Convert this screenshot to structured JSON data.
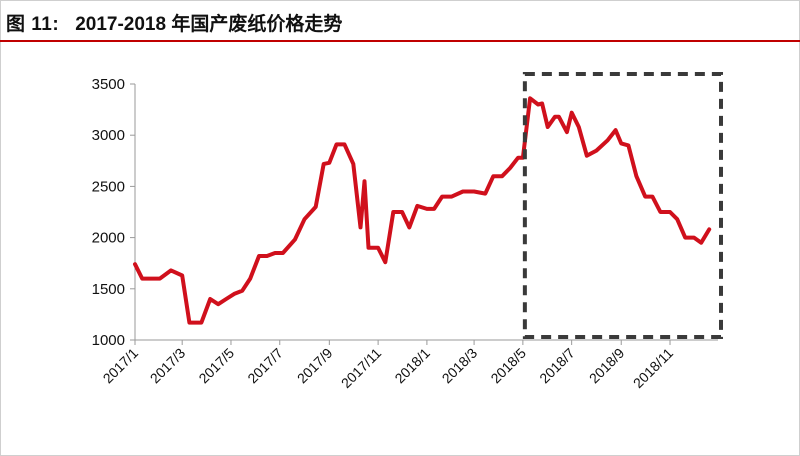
{
  "header": {
    "figure_label": "图 11:",
    "title": "2017-2018 年国产废纸价格走势"
  },
  "colors": {
    "series": "#d0101c",
    "title_rule": "#c00000",
    "highlight_box": "#3a3a3a"
  },
  "chart_data": {
    "type": "line",
    "title": "2017-2018 年国产废纸价格走势",
    "xlabel": "",
    "ylabel": "",
    "ylim": [
      1000,
      3500
    ],
    "yticks": [
      "1000",
      "1500",
      "2000",
      "2500",
      "3000",
      "3500"
    ],
    "xticks": [
      "2017/1",
      "2017/3",
      "2017/5",
      "2017/7",
      "2017/9",
      "2017/11",
      "2018/1",
      "2018/3",
      "2018/5",
      "2018/7",
      "2018/9",
      "2018/11"
    ],
    "grid": false,
    "legend": "none",
    "highlight": {
      "from": "2018/5",
      "to": "2018/12",
      "style": "dashed box"
    },
    "series": [
      {
        "x": [
          "2017/1/01",
          "2017/1/10",
          "2017/1/20",
          "2017/2/01",
          "2017/2/15",
          "2017/3/01",
          "2017/3/10",
          "2017/3/25",
          "2017/4/05",
          "2017/4/15",
          "2017/4/25",
          "2017/5/05",
          "2017/5/15",
          "2017/5/25",
          "2017/6/05",
          "2017/6/15",
          "2017/6/25",
          "2017/7/05",
          "2017/7/20",
          "2017/8/01",
          "2017/8/15",
          "2017/8/25",
          "2017/9/01",
          "2017/9/10",
          "2017/9/20",
          "2017/10/01",
          "2017/10/10",
          "2017/10/15",
          "2017/10/20",
          "2017/10/25",
          "2017/11/01",
          "2017/11/10",
          "2017/11/20",
          "2017/12/01",
          "2017/12/10",
          "2017/12/20",
          "2018/1/01",
          "2018/1/10",
          "2018/1/20",
          "2018/2/01",
          "2018/2/15",
          "2018/3/01",
          "2018/3/15",
          "2018/3/25",
          "2018/4/05",
          "2018/4/15",
          "2018/4/25",
          "2018/5/01",
          "2018/5/10",
          "2018/5/20",
          "2018/5/25",
          "2018/6/01",
          "2018/6/10",
          "2018/6/15",
          "2018/6/25",
          "2018/7/01",
          "2018/7/10",
          "2018/7/20",
          "2018/8/01",
          "2018/8/15",
          "2018/8/25",
          "2018/9/01",
          "2018/9/10",
          "2018/9/20",
          "2018/10/01",
          "2018/10/10",
          "2018/10/20",
          "2018/11/01",
          "2018/11/10",
          "2018/11/20",
          "2018/12/01",
          "2018/12/10",
          "2018/12/20"
        ],
        "values": [
          1740,
          1600,
          1600,
          1600,
          1680,
          1630,
          1170,
          1170,
          1400,
          1350,
          1400,
          1450,
          1480,
          1600,
          1820,
          1820,
          1850,
          1850,
          1980,
          2180,
          2300,
          2720,
          2730,
          2910,
          2910,
          2720,
          2100,
          2550,
          1900,
          1900,
          1900,
          1760,
          2250,
          2250,
          2100,
          2310,
          2280,
          2280,
          2400,
          2400,
          2450,
          2450,
          2430,
          2600,
          2600,
          2680,
          2780,
          2780,
          3360,
          3300,
          3310,
          3080,
          3180,
          3180,
          3030,
          3220,
          3080,
          2800,
          2850,
          2950,
          3050,
          2920,
          2900,
          2600,
          2400,
          2400,
          2250,
          2250,
          2180,
          2000,
          2000,
          1950,
          2080
        ]
      }
    ]
  }
}
